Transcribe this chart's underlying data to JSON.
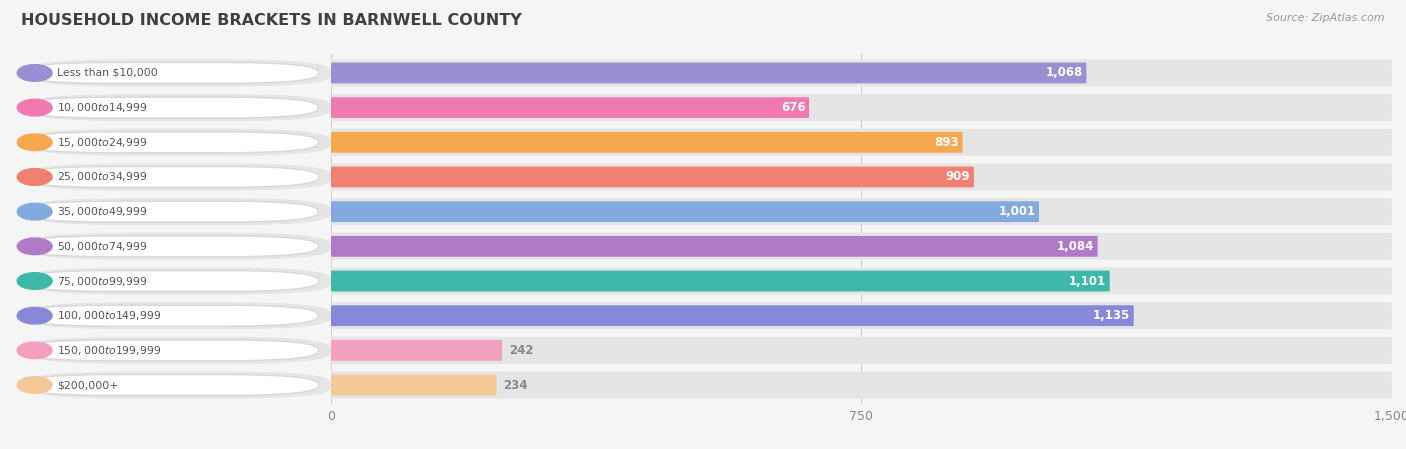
{
  "title": "Household Income Brackets in Barnwell County",
  "title_upper": "HOUSEHOLD INCOME BRACKETS IN BARNWELL COUNTY",
  "source": "Source: ZipAtlas.com",
  "categories": [
    "Less than $10,000",
    "$10,000 to $14,999",
    "$15,000 to $24,999",
    "$25,000 to $34,999",
    "$35,000 to $49,999",
    "$50,000 to $74,999",
    "$75,000 to $99,999",
    "$100,000 to $149,999",
    "$150,000 to $199,999",
    "$200,000+"
  ],
  "values": [
    1068,
    676,
    893,
    909,
    1001,
    1084,
    1101,
    1135,
    242,
    234
  ],
  "bar_colors": [
    "#9b8fd4",
    "#f07ab0",
    "#f5a84e",
    "#f08070",
    "#82aade",
    "#b07ac8",
    "#3db8a8",
    "#8888d8",
    "#f5a0c0",
    "#f5c898"
  ],
  "background_color": "#f5f5f5",
  "bar_bg_color": "#e5e5e5",
  "xtick_vals": [
    0,
    750,
    1500
  ],
  "title_color": "#404040",
  "label_color": "#555555",
  "source_color": "#999999",
  "value_threshold": 300,
  "bar_max": 1500
}
